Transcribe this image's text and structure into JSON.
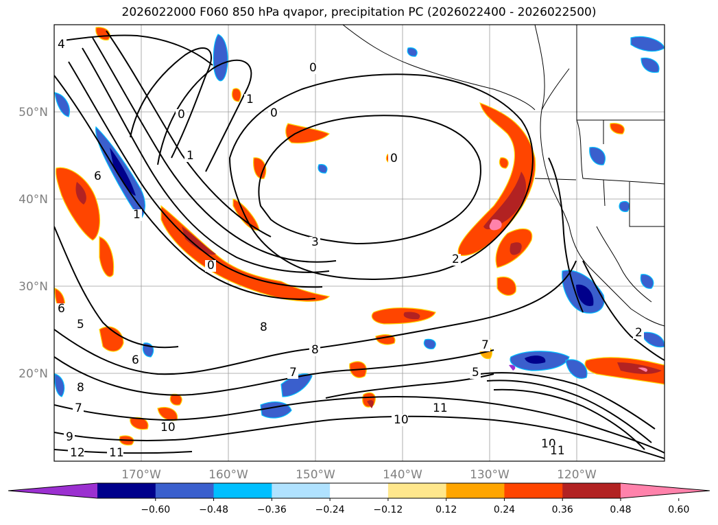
{
  "title": "2026022000 F060 850 hPa qvapor, precipitation PC (2026022400 - 2026022500)",
  "lat_labels": [
    "50°N",
    "40°N",
    "30°N",
    "20°N"
  ],
  "lon_labels": [
    "170°W",
    "160°W",
    "150°W",
    "140°W",
    "130°W",
    "120°W"
  ],
  "colorbar": {
    "colors": [
      "#9b30d0",
      "#00008b",
      "#3a5fcd",
      "#00bfff",
      "#b0e2ff",
      "#ffffff",
      "#ffe78c",
      "#ffa500",
      "#ff4500",
      "#b22222",
      "#ff82ab"
    ],
    "ticks": [
      "−0.60",
      "−0.48",
      "−0.36",
      "−0.24",
      "−0.12",
      "0.12",
      "0.24",
      "0.36",
      "0.48",
      "0.60"
    ]
  },
  "contour_labels": [
    "4",
    "0",
    "1",
    "0",
    "1",
    "0",
    "0",
    "3",
    "6",
    "1",
    "0",
    "2",
    "5",
    "6",
    "8",
    "8",
    "7",
    "7",
    "5",
    "6",
    "8",
    "7",
    "9",
    "10",
    "11",
    "12",
    "11",
    "10",
    "10",
    "11",
    "2"
  ]
}
